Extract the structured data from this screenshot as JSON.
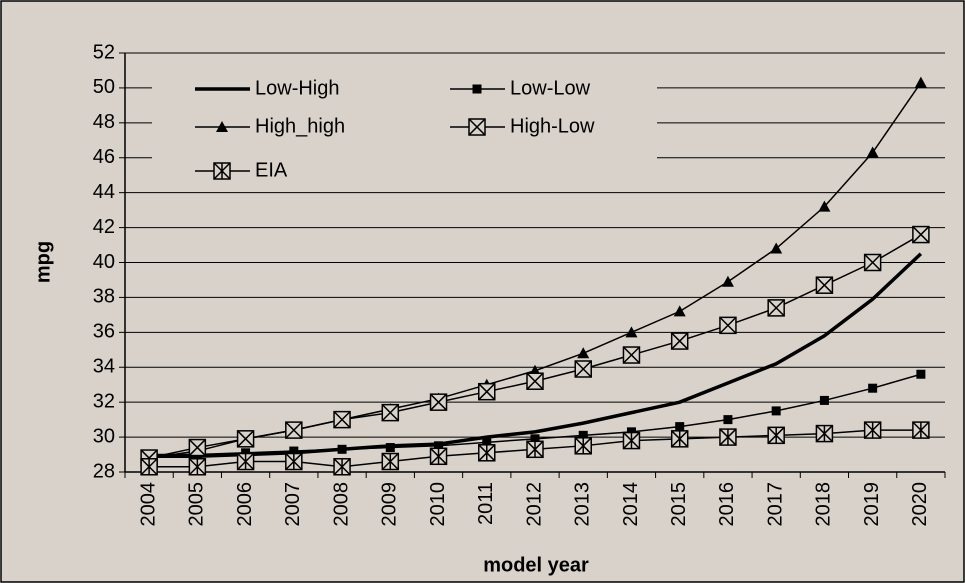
{
  "chart_data": {
    "type": "line",
    "y_label": "mpg",
    "x_label": "model year",
    "categories": [
      "2004",
      "2005",
      "2006",
      "2007",
      "2008",
      "2009",
      "2010",
      "2011",
      "2012",
      "2013",
      "2014",
      "2015",
      "2016",
      "2017",
      "2018",
      "2019",
      "2020"
    ],
    "ylim": [
      28,
      52
    ],
    "yticks": [
      28,
      30,
      32,
      34,
      36,
      38,
      40,
      42,
      44,
      46,
      48,
      50,
      52
    ],
    "grid": true,
    "series": [
      {
        "name": "Low-High",
        "color": "#000000",
        "marker": "none",
        "line_width": 3.5,
        "values": [
          28.9,
          28.9,
          29.0,
          29.1,
          29.3,
          29.5,
          29.6,
          30.0,
          30.3,
          30.8,
          31.4,
          32.0,
          33.1,
          34.2,
          35.8,
          37.9,
          40.5
        ]
      },
      {
        "name": "Low-Low",
        "color": "#000000",
        "marker": "square",
        "line_width": 1.5,
        "values": [
          29.0,
          29.0,
          29.1,
          29.2,
          29.3,
          29.4,
          29.5,
          29.7,
          29.9,
          30.1,
          30.3,
          30.6,
          31.0,
          31.5,
          32.1,
          32.8,
          33.6
        ]
      },
      {
        "name": "High_high",
        "color": "#000000",
        "marker": "triangle",
        "line_width": 1.5,
        "values": [
          28.8,
          29.2,
          29.9,
          30.4,
          31.0,
          31.6,
          32.2,
          33.0,
          33.8,
          34.8,
          36.0,
          37.2,
          38.9,
          40.8,
          43.2,
          46.3,
          50.3
        ]
      },
      {
        "name": "High-Low",
        "color": "#000000",
        "marker": "boxx",
        "line_width": 1.5,
        "values": [
          28.8,
          29.4,
          29.9,
          30.4,
          31.0,
          31.4,
          32.0,
          32.6,
          33.2,
          33.9,
          34.7,
          35.5,
          36.4,
          37.4,
          38.7,
          40.0,
          41.6
        ]
      },
      {
        "name": "EIA",
        "color": "#000000",
        "marker": "boxstar",
        "line_width": 1.5,
        "values": [
          28.3,
          28.3,
          28.6,
          28.6,
          28.3,
          28.6,
          28.9,
          29.1,
          29.3,
          29.5,
          29.8,
          29.9,
          30.0,
          30.1,
          30.2,
          30.4,
          30.4
        ]
      }
    ]
  }
}
